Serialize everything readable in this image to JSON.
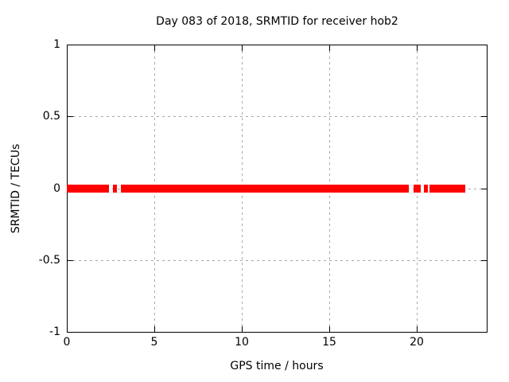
{
  "chart_data": {
    "type": "line",
    "title": "Day 083 of 2018, SRMTID for receiver hob2",
    "xlabel": "GPS time / hours",
    "ylabel": "SRMTID / TECUs",
    "xlim": [
      0,
      24
    ],
    "ylim": [
      -1,
      1
    ],
    "xticks": [
      0,
      5,
      10,
      15,
      20
    ],
    "xtick_labels": [
      "0",
      "5",
      "10",
      "15",
      "20"
    ],
    "yticks": [
      -1,
      -0.5,
      0,
      0.5,
      1
    ],
    "ytick_labels": [
      "-1",
      "-0.5",
      "0",
      "0.5",
      "1"
    ],
    "grid": true,
    "legend": "none",
    "series": [
      {
        "name": "SRMTID",
        "color": "#ff0000",
        "y_value": 0,
        "x_segments_hours": [
          [
            0.0,
            2.4
          ],
          [
            2.62,
            2.86
          ],
          [
            3.1,
            19.55
          ],
          [
            19.82,
            20.23
          ],
          [
            20.42,
            20.64
          ],
          [
            20.73,
            22.77
          ]
        ]
      }
    ],
    "colors": {
      "series": "#ff0000",
      "grid": "#a8a8a8",
      "border": "#000000",
      "background": "#ffffff",
      "text": "#000000"
    }
  }
}
